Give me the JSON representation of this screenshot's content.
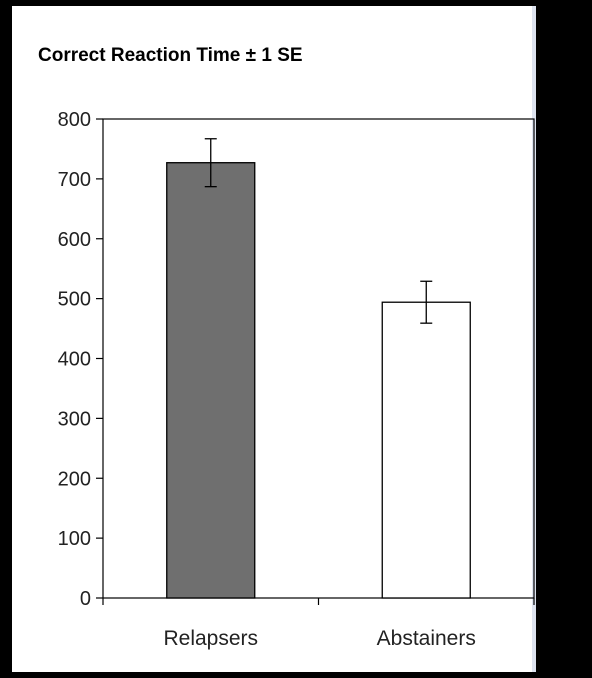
{
  "chart_data": {
    "type": "bar",
    "title": "Correct Reaction Time ± 1 SE",
    "xlabel": "",
    "ylabel": "",
    "categories": [
      "Relapsers",
      "Abstainers"
    ],
    "values": [
      727,
      494
    ],
    "error": [
      40,
      35
    ],
    "bar_colors": [
      "#6f6f6f",
      "#ffffff"
    ],
    "bar_stroke": "#000000",
    "ylim": [
      0,
      800
    ],
    "yticks": [
      "0",
      "100",
      "200",
      "300",
      "400",
      "500",
      "600",
      "700",
      "800"
    ],
    "grid": false,
    "legend": "none"
  }
}
